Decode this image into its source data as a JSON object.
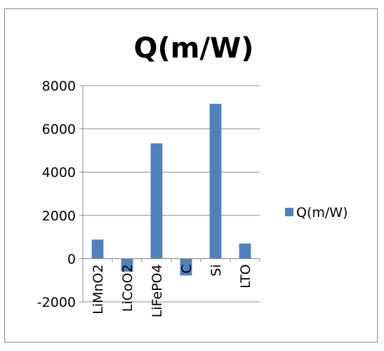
{
  "chart_data": {
    "type": "bar",
    "title": "Q(m/W)",
    "xlabel": "",
    "ylabel": "",
    "categories": [
      "LiMnO2",
      "LiCoO2",
      "LiFePO4",
      "C",
      "Si",
      "LTO"
    ],
    "series": [
      {
        "name": "Q(m/W)",
        "values": [
          880,
          -600,
          5330,
          -780,
          7160,
          700
        ],
        "color": "#4F81BD"
      }
    ],
    "ylim": [
      -2000,
      8000
    ],
    "yticks": [
      "8000",
      "6000",
      "4000",
      "2000",
      "0",
      "-2000"
    ],
    "grid": "horizontal",
    "legend_position": "right"
  }
}
